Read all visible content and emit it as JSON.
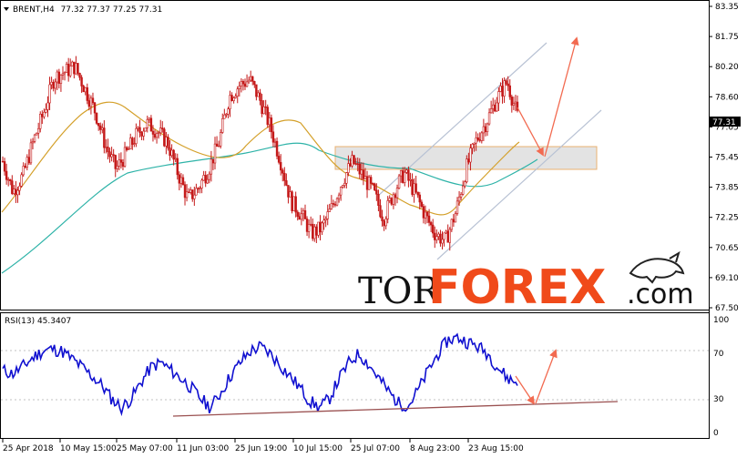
{
  "header": {
    "symbol": "BRENT,H4",
    "quote": "77.32 77.37 77.25 77.31"
  },
  "rsi_header": "RSI(13) 45.3407",
  "price_tag": "77.31",
  "logo": {
    "tor": "TOR",
    "forex": "FOREX",
    "com": ".com"
  },
  "colors": {
    "candle": "#c41818",
    "ma_fast": "#d4a02a",
    "ma_slow": "#2eb3a8",
    "rsi": "#1010d0",
    "arrow": "#f26a50",
    "channel": "#b8c2d4",
    "trendline": "#9a5050"
  },
  "chart_data": [
    {
      "type": "candlestick",
      "title": "BRENT,H4",
      "ylim": [
        67.5,
        83.35
      ],
      "y_ticks": [
        "83.35",
        "81.75",
        "80.20",
        "78.60",
        "77.05",
        "75.45",
        "73.85",
        "72.25",
        "70.65",
        "69.10",
        "67.50"
      ],
      "x_ticks": [
        "25 Apr 2018",
        "10 May 15:00",
        "25 May 07:00",
        "11 Jun 03:00",
        "25 Jun 19:00",
        "10 Jul 15:00",
        "25 Jul 07:00",
        "8 Aug 23:00",
        "23 Aug 15:00"
      ],
      "last_price": 77.31,
      "close_path": [
        75.2,
        73.6,
        74.5,
        76.3,
        77.8,
        79.6,
        79.9,
        80.2,
        79.0,
        77.8,
        76.0,
        74.8,
        75.6,
        76.6,
        77.2,
        76.8,
        76.2,
        74.6,
        73.2,
        73.8,
        74.8,
        76.2,
        78.6,
        79.2,
        79.5,
        78.4,
        77.0,
        75.2,
        73.1,
        72.4,
        71.4,
        71.7,
        72.8,
        74.2,
        75.2,
        74.4,
        73.6,
        72.2,
        73.6,
        74.6,
        73.6,
        72.4,
        71.4,
        71.0,
        72.5,
        74.8,
        76.3,
        77.3,
        78.5,
        79.4,
        77.6
      ],
      "zone": {
        "label": "",
        "y_range": [
          74.75,
          76.05
        ]
      }
    },
    {
      "type": "line",
      "title": "RSI(13) 45.3407",
      "ylim": [
        0,
        100
      ],
      "y_ticks": [
        "100",
        "70",
        "30",
        "0"
      ],
      "series": [
        {
          "values": [
            55,
            52,
            58,
            66,
            72,
            74,
            72,
            65,
            58,
            50,
            42,
            30,
            22,
            30,
            45,
            58,
            62,
            55,
            48,
            40,
            30,
            22,
            35,
            50,
            62,
            72,
            76,
            70,
            60,
            50,
            40,
            28,
            22,
            30,
            48,
            62,
            70,
            60,
            48,
            36,
            26,
            24,
            38,
            55,
            70,
            82,
            84,
            80,
            76,
            70,
            58,
            48,
            44
          ]
        }
      ],
      "value": 45.3407
    }
  ]
}
